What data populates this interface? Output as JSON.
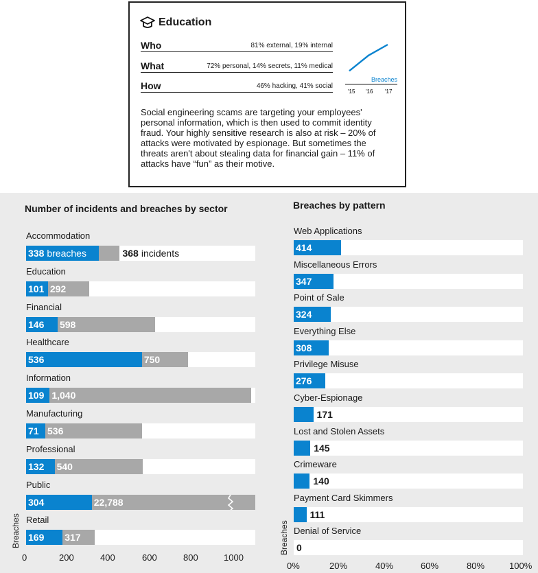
{
  "card": {
    "title": "Education",
    "icon": "graduation-cap-icon",
    "rows": [
      {
        "key": "Who",
        "value": "81% external, 19% internal"
      },
      {
        "key": "What",
        "value": "72% personal, 14% secrets, 11% medical"
      },
      {
        "key": "How",
        "value": "46% hacking, 41% social"
      }
    ],
    "mini_chart": {
      "label": "Breaches",
      "years": [
        "'15",
        "'16",
        "'17"
      ],
      "values": [
        0.15,
        0.65,
        1.0
      ]
    },
    "paragraph": "Social engineering scams are targeting your employees' personal information, which is then used to commit identity fraud. Your highly sensitive research is also at risk – 20% of attacks were motivated by espionage. But sometimes the threats aren't about stealing data for financial gain – 11% of attacks have “fun” as their motive."
  },
  "chart_data": [
    {
      "type": "bar",
      "title": "Number of incidents and breaches by sector",
      "ylabel": "Breaches",
      "xlim": [
        0,
        1100
      ],
      "xticks": [
        "0",
        "200",
        "400",
        "600",
        "800",
        "1000"
      ],
      "categories": [
        "Accommodation",
        "Education",
        "Financial",
        "Healthcare",
        "Information",
        "Manufacturing",
        "Professional",
        "Public",
        "Retail"
      ],
      "series": [
        {
          "name": "breaches",
          "values": [
            338,
            101,
            146,
            536,
            109,
            71,
            132,
            304,
            169
          ]
        },
        {
          "name": "incidents",
          "values": [
            368,
            292,
            598,
            750,
            1040,
            536,
            540,
            22788,
            317
          ]
        }
      ],
      "value_labels": {
        "breaches": [
          "338",
          "101",
          "146",
          "536",
          "109",
          "71",
          "132",
          "304",
          "169"
        ],
        "incidents": [
          "368",
          "292",
          "598",
          "750",
          "1,040",
          "536",
          "540",
          "22,788",
          "317"
        ]
      },
      "unit_labels": {
        "breaches": "breaches",
        "incidents": "incidents"
      },
      "colors": {
        "breaches": "#0a83cf",
        "incidents": "#a8a8a8",
        "track": "#ffffff"
      },
      "axis_break": "Public incidents bar truncated"
    },
    {
      "type": "bar",
      "title": "Breaches by pattern",
      "ylabel": "Breaches",
      "xlim": [
        0,
        2000
      ],
      "xticks": [
        "0%",
        "20%",
        "40%",
        "60%",
        "80%",
        "100%"
      ],
      "categories": [
        "Web Applications",
        "Miscellaneous Errors",
        "Point of Sale",
        "Everything Else",
        "Privilege Misuse",
        "Cyber-Espionage",
        "Lost and Stolen Assets",
        "Crimeware",
        "Payment Card Skimmers",
        "Denial of Service"
      ],
      "values": [
        414,
        347,
        324,
        308,
        276,
        171,
        145,
        140,
        111,
        0
      ],
      "value_labels": [
        "414",
        "347",
        "324",
        "308",
        "276",
        "171",
        "145",
        "140",
        "111",
        "0"
      ],
      "colors": {
        "bar": "#0a83cf",
        "track": "#ffffff"
      }
    }
  ]
}
